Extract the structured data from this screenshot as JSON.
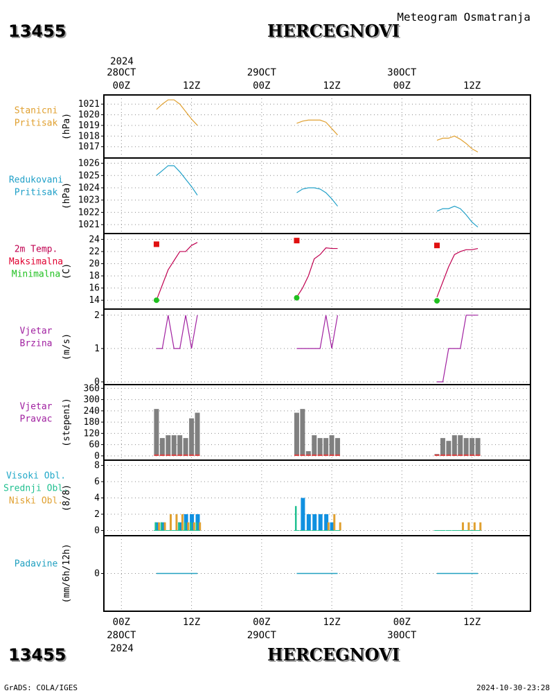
{
  "header": {
    "station_id": "13455",
    "station_name": "HERCEGNOVI",
    "subtitle": "Meteogram Osmatranja",
    "year": "2024"
  },
  "footer": {
    "left": "GrADS: COLA/IGES",
    "right": "2024-10-30-23:28"
  },
  "time_axis": {
    "ticks_top": [
      {
        "hour": 0,
        "line1": "28OCT",
        "line2": "00Z"
      },
      {
        "hour": 12,
        "line1": "",
        "line2": "12Z"
      },
      {
        "hour": 24,
        "line1": "29OCT",
        "line2": "00Z"
      },
      {
        "hour": 36,
        "line1": "",
        "line2": "12Z"
      },
      {
        "hour": 48,
        "line1": "30OCT",
        "line2": "00Z"
      },
      {
        "hour": 60,
        "line1": "",
        "line2": "12Z"
      }
    ],
    "ticks_bottom": [
      {
        "hour": 0,
        "line1": "00Z",
        "line2": "28OCT"
      },
      {
        "hour": 12,
        "line1": "12Z",
        "line2": ""
      },
      {
        "hour": 24,
        "line1": "00Z",
        "line2": "29OCT"
      },
      {
        "hour": 36,
        "line1": "12Z",
        "line2": ""
      },
      {
        "hour": 48,
        "line1": "00Z",
        "line2": "30OCT"
      },
      {
        "hour": 60,
        "line1": "12Z",
        "line2": ""
      }
    ],
    "range_hours": [
      -3,
      70
    ]
  },
  "colors": {
    "station_pressure": "#e0a030",
    "reduced_pressure": "#20a0c8",
    "temp_max": "#e00030",
    "temp_min": "#20c020",
    "temp_line": "#c00050",
    "wind": "#a020a0",
    "wind_dir_bar": "#808080",
    "wind_dir_base": "#e04040",
    "cloud_high": "#20a8c8",
    "cloud_mid": "#20c090",
    "cloud_low": "#e0a030",
    "cloud_bar_high": "#1090e0",
    "precip": "#20a0c0",
    "grid": "#888888"
  },
  "chart_data": [
    {
      "type": "line",
      "panel": "station_pressure",
      "label_lines": [
        "Stanicni",
        "Pritisak"
      ],
      "unit": "(hPa)",
      "ylim": [
        1016.2,
        1021.6
      ],
      "yticks": [
        1017,
        1018,
        1019,
        1020,
        1021
      ],
      "series": [
        {
          "x": [
            6,
            7,
            8,
            9,
            10,
            11,
            12,
            13
          ],
          "y": [
            1020.5,
            1021.0,
            1021.4,
            1021.4,
            1021.0,
            1020.3,
            1019.6,
            1019.0
          ]
        },
        {
          "x": [
            30,
            31,
            32,
            33,
            34,
            35,
            36,
            37
          ],
          "y": [
            1019.2,
            1019.4,
            1019.5,
            1019.5,
            1019.5,
            1019.3,
            1018.7,
            1018.1
          ]
        },
        {
          "x": [
            54,
            55,
            56,
            57,
            58,
            59,
            60,
            61
          ],
          "y": [
            1017.6,
            1017.8,
            1017.8,
            1018.0,
            1017.7,
            1017.3,
            1016.8,
            1016.5
          ]
        }
      ]
    },
    {
      "type": "line",
      "panel": "reduced_pressure",
      "label_lines": [
        "Redukovani",
        "Pritisak"
      ],
      "unit": "(hPa)",
      "ylim": [
        1020.5,
        1026.2
      ],
      "yticks": [
        1021,
        1022,
        1023,
        1024,
        1025,
        1026
      ],
      "series": [
        {
          "x": [
            6,
            7,
            8,
            9,
            10,
            11,
            12,
            13
          ],
          "y": [
            1025.0,
            1025.4,
            1025.8,
            1025.8,
            1025.3,
            1024.7,
            1024.1,
            1023.4
          ]
        },
        {
          "x": [
            30,
            31,
            32,
            33,
            34,
            35,
            36,
            37
          ],
          "y": [
            1023.6,
            1023.9,
            1024.0,
            1024.0,
            1023.9,
            1023.6,
            1023.1,
            1022.5
          ]
        },
        {
          "x": [
            54,
            55,
            56,
            57,
            58,
            59,
            60,
            61
          ],
          "y": [
            1022.1,
            1022.3,
            1022.3,
            1022.5,
            1022.3,
            1021.8,
            1021.2,
            1020.8
          ]
        }
      ]
    },
    {
      "type": "line",
      "panel": "temperature",
      "label_lines": [
        "2m Temp.",
        "Maksimalna",
        "Minimalna"
      ],
      "unit": "(C)",
      "ylim": [
        13,
        24.5
      ],
      "yticks": [
        14,
        16,
        18,
        20,
        22,
        24
      ],
      "series": [
        {
          "x": [
            6,
            7,
            8,
            9,
            10,
            11,
            12,
            13
          ],
          "y": [
            14.0,
            16.5,
            19.0,
            20.5,
            22.0,
            22.0,
            23.0,
            23.5
          ]
        },
        {
          "x": [
            30,
            31,
            32,
            33,
            34,
            35,
            36,
            37
          ],
          "y": [
            14.5,
            16.0,
            18.0,
            20.8,
            21.5,
            22.6,
            22.5,
            22.5
          ]
        },
        {
          "x": [
            54,
            55,
            56,
            57,
            58,
            59,
            60,
            61
          ],
          "y": [
            14.5,
            17.0,
            19.5,
            21.5,
            22.0,
            22.3,
            22.3,
            22.5
          ]
        }
      ],
      "max_points": [
        {
          "x": 6,
          "y": 23.2
        },
        {
          "x": 30,
          "y": 23.8
        },
        {
          "x": 54,
          "y": 23.0
        }
      ],
      "min_points": [
        {
          "x": 6,
          "y": 14.0
        },
        {
          "x": 30,
          "y": 14.4
        },
        {
          "x": 54,
          "y": 13.9
        }
      ]
    },
    {
      "type": "line",
      "panel": "wind_speed",
      "label_lines": [
        "Vjetar",
        "Brzina"
      ],
      "unit": "(m/s)",
      "ylim": [
        0,
        2.1
      ],
      "yticks": [
        0,
        1,
        2
      ],
      "series": [
        {
          "x": [
            6,
            7,
            8,
            9,
            10,
            11,
            12,
            13
          ],
          "y": [
            1,
            1,
            2,
            1,
            1,
            2,
            1,
            2
          ]
        },
        {
          "x": [
            30,
            31,
            32,
            33,
            34,
            35,
            36,
            37
          ],
          "y": [
            1,
            1,
            1,
            1,
            1,
            2,
            1,
            2
          ]
        },
        {
          "x": [
            54,
            55,
            56,
            57,
            58,
            59,
            60,
            61
          ],
          "y": [
            0,
            0,
            1,
            1,
            1,
            2,
            2,
            2
          ]
        }
      ]
    },
    {
      "type": "bar",
      "panel": "wind_direction",
      "label_lines": [
        "Vjetar",
        "Pravac"
      ],
      "unit": "(stepeni)",
      "ylim": [
        -8,
        365
      ],
      "yticks": [
        0,
        60,
        120,
        180,
        240,
        300,
        360
      ],
      "ytick_labels": [
        "0",
        "60",
        "120",
        "180",
        "240",
        "300",
        "360"
      ],
      "x": [
        6,
        7,
        8,
        9,
        10,
        11,
        12,
        13,
        30,
        31,
        32,
        33,
        34,
        35,
        36,
        37,
        54,
        55,
        56,
        57,
        58,
        59,
        60,
        61
      ],
      "values": [
        250,
        95,
        110,
        110,
        110,
        95,
        200,
        230,
        230,
        250,
        25,
        110,
        95,
        95,
        110,
        95,
        10,
        95,
        80,
        110,
        110,
        95,
        95,
        95
      ]
    },
    {
      "type": "bar",
      "panel": "clouds",
      "label_lines": [
        "Visoki Obl.",
        "Srednji Obl.",
        "Niski Obl."
      ],
      "unit": "(8/8)",
      "ylim": [
        -0.3,
        8.3
      ],
      "yticks": [
        0,
        2,
        4,
        6,
        8
      ],
      "x": [
        6,
        7,
        8,
        9,
        10,
        11,
        12,
        13,
        30,
        31,
        32,
        33,
        34,
        35,
        36,
        37,
        54,
        55,
        56,
        57,
        58,
        59,
        60,
        61
      ],
      "series": [
        {
          "name": "Visoki Obl.",
          "values": [
            1,
            1,
            0,
            0,
            1,
            2,
            2,
            2,
            0,
            4,
            2,
            2,
            2,
            2,
            1,
            0,
            0,
            0,
            0,
            0,
            0,
            0,
            0,
            0
          ]
        },
        {
          "name": "Srednji Obl.",
          "values": [
            1,
            1,
            0,
            0,
            1,
            1,
            1,
            1,
            3,
            0,
            0,
            0,
            0,
            0,
            0,
            0,
            0,
            0,
            0,
            0,
            0,
            0,
            0,
            0
          ]
        },
        {
          "name": "Niski Obl.",
          "values": [
            1,
            1,
            2,
            2,
            2,
            1,
            1,
            1,
            0,
            0,
            0,
            0,
            0,
            1,
            2,
            1,
            0,
            0,
            0,
            0,
            1,
            1,
            1,
            1
          ]
        }
      ]
    },
    {
      "type": "bar",
      "panel": "precipitation",
      "label_lines": [
        "Padavine"
      ],
      "unit": "(mm/6h/12h)",
      "ylim": [
        -5,
        5
      ],
      "yticks": [
        0
      ],
      "segments": [
        [
          6,
          13
        ],
        [
          30,
          37
        ],
        [
          54,
          61
        ]
      ],
      "values": [
        0,
        0,
        0
      ]
    }
  ]
}
